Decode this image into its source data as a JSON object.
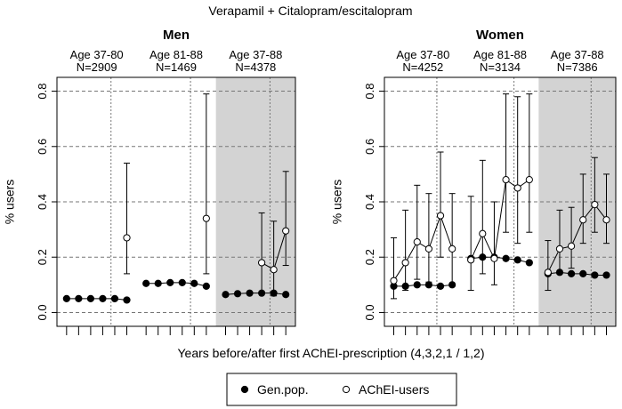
{
  "chart_data": {
    "type": "scatter",
    "title": "Verapamil + Citalopram/escitalopram",
    "xlabel": "Years before/after first AChEI-prescription (4,3,2,1 / 1,2)",
    "ylabel": "% users",
    "ylim": [
      -0.05,
      0.85
    ],
    "yticks": [
      0.0,
      0.2,
      0.4,
      0.6,
      0.8
    ],
    "ytick_labels": [
      "0.0",
      "0.2",
      "0.4",
      "0.6",
      "0.8"
    ],
    "legend": {
      "position": "bottom-center",
      "entries": [
        "Gen.pop.",
        "AChEI-users"
      ]
    },
    "panels": [
      {
        "title": "Men",
        "groups": [
          {
            "label_age": "Age 37-80",
            "label_n": "N=2909",
            "shaded": false,
            "genpop": [
              0.05,
              0.05,
              0.05,
              0.05,
              0.05,
              0.045
            ],
            "achei": [
              null,
              null,
              null,
              null,
              null,
              0.27
            ],
            "achei_lo": [
              null,
              null,
              null,
              null,
              null,
              0.14
            ],
            "achei_hi": [
              null,
              null,
              null,
              null,
              null,
              0.54
            ]
          },
          {
            "label_age": "Age 81-88",
            "label_n": "N=1469",
            "shaded": false,
            "genpop": [
              0.105,
              0.105,
              0.108,
              0.108,
              0.105,
              0.095
            ],
            "achei": [
              null,
              null,
              null,
              null,
              null,
              0.34
            ],
            "achei_lo": [
              null,
              null,
              null,
              null,
              null,
              0.14
            ],
            "achei_hi": [
              null,
              null,
              null,
              null,
              null,
              0.79
            ]
          },
          {
            "label_age": "Age 37-88",
            "label_n": "N=4378",
            "shaded": true,
            "genpop": [
              0.065,
              0.068,
              0.07,
              0.07,
              0.07,
              0.065
            ],
            "achei": [
              null,
              null,
              null,
              0.18,
              0.155,
              0.295
            ],
            "achei_lo": [
              null,
              null,
              null,
              0.07,
              0.06,
              0.17
            ],
            "achei_hi": [
              null,
              null,
              null,
              0.36,
              0.33,
              0.51
            ]
          }
        ]
      },
      {
        "title": "Women",
        "groups": [
          {
            "label_age": "Age 37-80",
            "label_n": "N=4252",
            "shaded": false,
            "genpop": [
              0.095,
              0.095,
              0.1,
              0.1,
              0.095,
              0.1
            ],
            "achei": [
              0.115,
              0.18,
              0.255,
              0.23,
              0.35,
              0.23
            ],
            "achei_lo": [
              0.05,
              0.08,
              0.12,
              0.11,
              0.2,
              0.1
            ],
            "achei_hi": [
              0.27,
              0.37,
              0.46,
              0.43,
              0.58,
              0.43
            ]
          },
          {
            "label_age": "Age 81-88",
            "label_n": "N=3134",
            "shaded": false,
            "genpop": [
              0.195,
              0.2,
              0.2,
              0.195,
              0.19,
              0.18
            ],
            "achei": [
              0.19,
              0.285,
              0.195,
              0.48,
              0.45,
              0.48
            ],
            "achei_lo": [
              0.08,
              0.14,
              0.1,
              0.29,
              0.25,
              0.29
            ],
            "achei_hi": [
              0.42,
              0.55,
              0.4,
              0.79,
              0.78,
              0.79
            ]
          },
          {
            "label_age": "Age 37-88",
            "label_n": "N=7386",
            "shaded": true,
            "genpop": [
              0.14,
              0.145,
              0.14,
              0.14,
              0.135,
              0.135
            ],
            "achei": [
              0.145,
              0.23,
              0.24,
              0.335,
              0.39,
              0.335
            ],
            "achei_lo": [
              0.08,
              0.15,
              0.16,
              0.25,
              0.29,
              0.25
            ],
            "achei_hi": [
              0.26,
              0.37,
              0.38,
              0.5,
              0.56,
              0.5
            ]
          }
        ]
      }
    ]
  }
}
